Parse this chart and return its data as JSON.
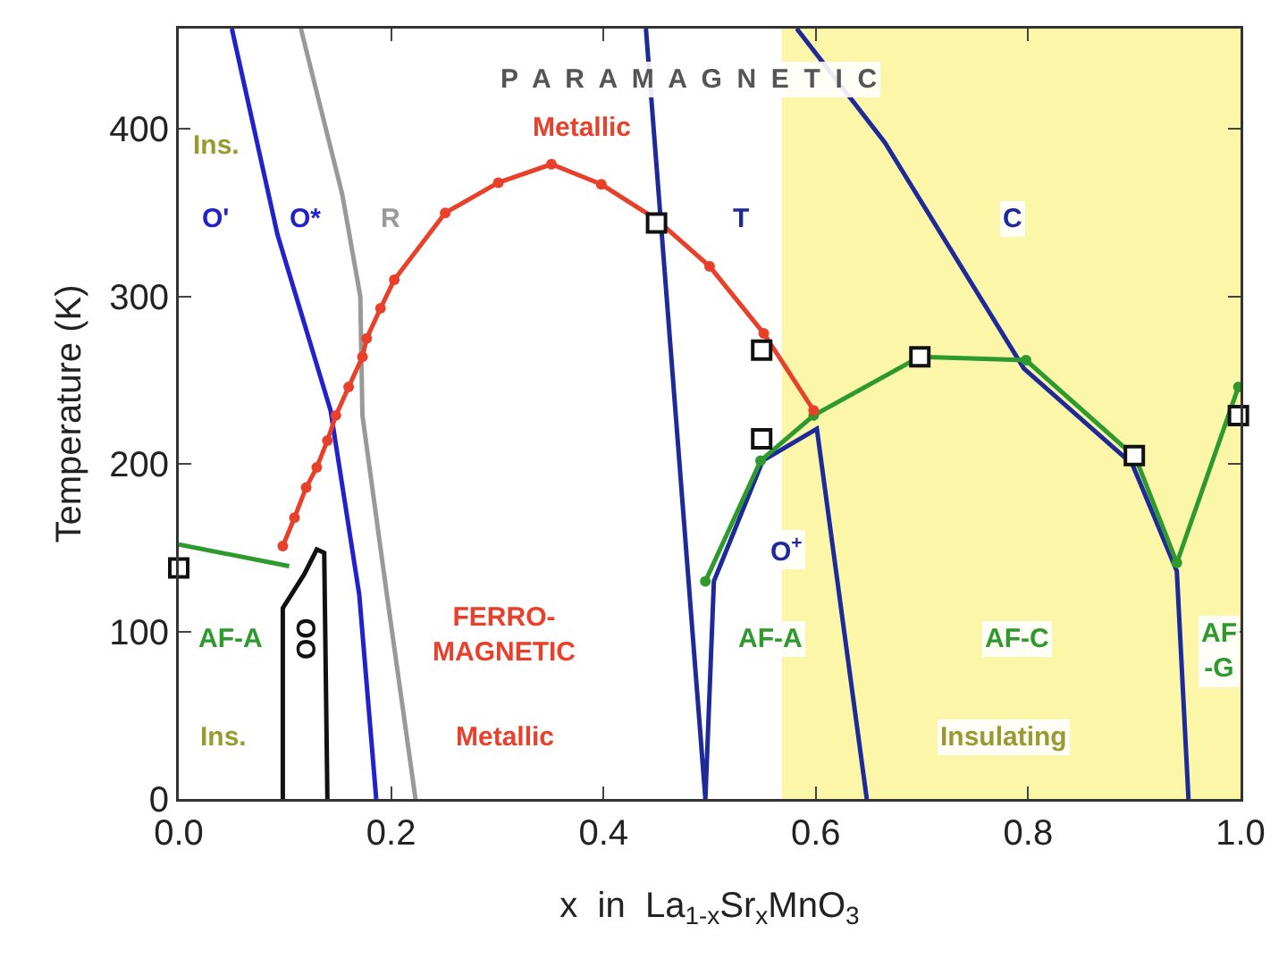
{
  "chart_data": {
    "type": "line",
    "xlabel": "x  in  La$_{1-x}$Sr$_{x}$MnO$_{3}$",
    "ylabel": "Temperature (K)",
    "xlim": [
      0,
      1
    ],
    "xticks": [
      {
        "value": 0,
        "label": "0.0"
      },
      0.2,
      0.4,
      0.6,
      0.8,
      {
        "value": 1,
        "label": "1.0"
      }
    ],
    "ylim": [
      0,
      460
    ],
    "yticks": [
      0,
      100,
      200,
      300,
      400
    ],
    "bands": [
      {
        "axis": "x",
        "from": 0.568,
        "to": 1,
        "color": "#fbf6a8"
      }
    ],
    "series": [
      {
        "color": "#2222cc",
        "marker": "none",
        "x": [
          0.05,
          0.093,
          0.143,
          0.17,
          0.186
        ],
        "values": [
          460,
          337,
          232,
          122,
          0
        ]
      },
      {
        "color": "#999999",
        "marker": "none",
        "x": [
          0.115,
          0.154,
          0.171,
          0.173,
          0.196,
          0.223
        ],
        "values": [
          460,
          361,
          300,
          229,
          122,
          0
        ]
      },
      {
        "color": "#111111",
        "marker": "none",
        "x": [
          0.098,
          0.098,
          0.118,
          0.13,
          0.137,
          0.14
        ],
        "values": [
          0,
          114,
          134,
          149,
          147,
          0
        ]
      },
      {
        "color": "#1e2a9a",
        "marker": "none",
        "x": [
          0.44,
          0.496,
          0.504,
          0.55,
          0.601,
          0.648
        ],
        "values": [
          460,
          0,
          130,
          202,
          221,
          0
        ]
      },
      {
        "color": "#1e2a9a",
        "marker": "none",
        "x": [
          0.582,
          0.665,
          0.796,
          0.898,
          0.94,
          0.951
        ],
        "values": [
          460,
          392,
          257,
          200,
          136,
          0
        ]
      },
      {
        "color": "#2e9a2e",
        "marker": "none",
        "x": [
          0,
          0.104
        ],
        "values": [
          152,
          139
        ]
      },
      {
        "color": "#2e9a2e",
        "marker": "circle",
        "x": [
          0.496,
          0.548,
          0.598,
          0.698,
          0.798,
          0.901,
          0.94,
          0.998
        ],
        "values": [
          130,
          202,
          229,
          264,
          262,
          204,
          141,
          246
        ]
      },
      {
        "color": "#e8402a",
        "marker": "circle",
        "x": [
          0.098,
          0.109,
          0.12,
          0.13,
          0.14,
          0.148,
          0.16,
          0.173,
          0.177,
          0.19,
          0.203,
          0.251,
          0.301,
          0.351,
          0.398,
          0.45,
          0.5,
          0.551,
          0.598
        ],
        "values": [
          151,
          168,
          186,
          198,
          214,
          229,
          246,
          264,
          275,
          293,
          310,
          350,
          368,
          379,
          367,
          346,
          318,
          278,
          232
        ]
      },
      {
        "type": "scatter",
        "color": "#111111",
        "marker": "square",
        "x": [
          0,
          0.45,
          0.549,
          0.549,
          0.698,
          0.9,
          0.998
        ],
        "values": [
          138,
          344,
          268,
          215,
          264,
          205,
          229
        ]
      }
    ],
    "annotations": [
      "P  A  R  A  M  A  G  N  E  T  I  C",
      "Metallic",
      "Ins.",
      "O'",
      "O*",
      "R",
      "T",
      "C",
      "O$^{+}$",
      "AF-A",
      "OO",
      "Ins.",
      "FERRO-\nMAGNETIC",
      "Metallic",
      "AF-A",
      "AF-C",
      "AF\n-G",
      "Insulating"
    ]
  }
}
